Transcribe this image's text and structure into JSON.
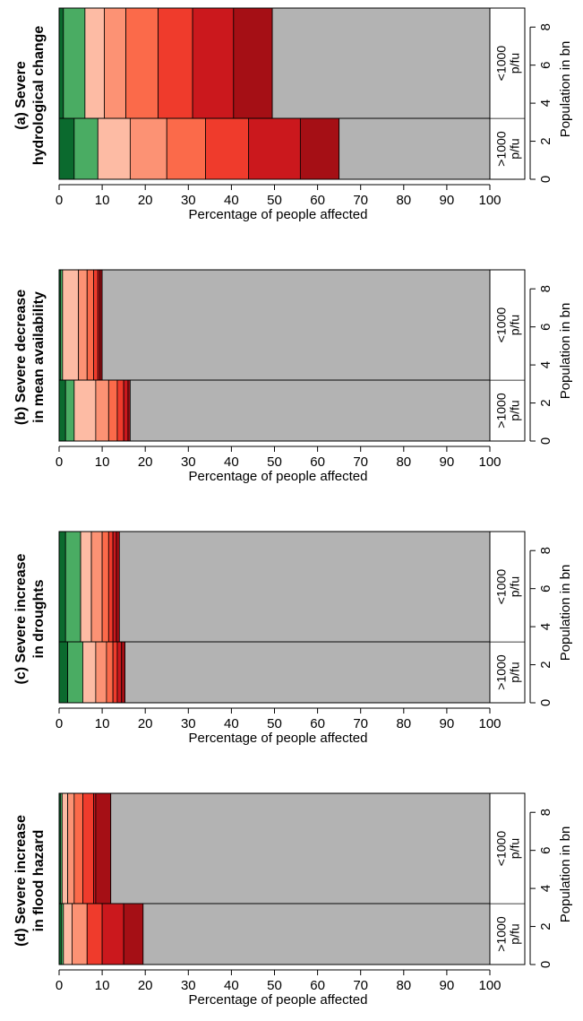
{
  "colors": {
    "unaffected": "#b3b3b3",
    "greens": [
      "#0b6a2e",
      "#2f8e4a",
      "#4aac63"
    ],
    "reds": [
      "#fdbba4",
      "#fc9274",
      "#fb6a4a",
      "#ef3b2c",
      "#cb181d",
      "#a50f15"
    ]
  },
  "chart_data": [
    {
      "type": "bar",
      "title": "(a) Severe hydrological change",
      "title_lines": [
        "(a) Severe",
        "hydrological change"
      ],
      "xlabel": "Percentage of people affected",
      "ylabel_right": "Population in bn",
      "xlim": [
        0,
        100
      ],
      "xticks": [
        0,
        10,
        20,
        30,
        40,
        50,
        60,
        70,
        80,
        90,
        100
      ],
      "ylim_right": [
        0,
        9
      ],
      "yticks_right": [
        0,
        2,
        4,
        6,
        8
      ],
      "categories": [
        {
          "label": "<1000 p/fu",
          "label_lines": [
            "<1000",
            "p/fu"
          ],
          "population_bn": [
            3.2,
            9.0
          ],
          "segments": [
            [
              0,
              1.0,
              "#0b6a2e"
            ],
            [
              1.0,
              6.0,
              "#4aac63"
            ],
            [
              6.0,
              10.5,
              "#fdbba4"
            ],
            [
              10.5,
              15.5,
              "#fc9274"
            ],
            [
              15.5,
              23.0,
              "#fb6a4a"
            ],
            [
              23.0,
              31.0,
              "#ef3b2c"
            ],
            [
              31.0,
              40.5,
              "#cb181d"
            ],
            [
              40.5,
              49.5,
              "#a50f15"
            ],
            [
              49.5,
              100,
              "#b3b3b3"
            ]
          ]
        },
        {
          "label": ">1000 p/fu",
          "label_lines": [
            ">1000",
            "p/fu"
          ],
          "population_bn": [
            0,
            3.2
          ],
          "segments": [
            [
              0,
              3.5,
              "#0b6a2e"
            ],
            [
              3.5,
              9.0,
              "#4aac63"
            ],
            [
              9.0,
              16.5,
              "#fdbba4"
            ],
            [
              16.5,
              25.0,
              "#fc9274"
            ],
            [
              25.0,
              34.0,
              "#fb6a4a"
            ],
            [
              34.0,
              44.0,
              "#ef3b2c"
            ],
            [
              44.0,
              56.0,
              "#cb181d"
            ],
            [
              56.0,
              65.0,
              "#a50f15"
            ],
            [
              65.0,
              100,
              "#b3b3b3"
            ]
          ]
        }
      ]
    },
    {
      "type": "bar",
      "title": "(b) Severe decrease in mean availability",
      "title_lines": [
        "(b) Severe decrease",
        "in mean availability"
      ],
      "xlabel": "Percentage of people affected",
      "ylabel_right": "Population in bn",
      "xlim": [
        0,
        100
      ],
      "xticks": [
        0,
        10,
        20,
        30,
        40,
        50,
        60,
        70,
        80,
        90,
        100
      ],
      "ylim_right": [
        0,
        9
      ],
      "yticks_right": [
        0,
        2,
        4,
        6,
        8
      ],
      "categories": [
        {
          "label": "<1000 p/fu",
          "label_lines": [
            "<1000",
            "p/fu"
          ],
          "population_bn": [
            3.2,
            9.0
          ],
          "segments": [
            [
              0,
              0.3,
              "#0b6a2e"
            ],
            [
              0.3,
              0.8,
              "#4aac63"
            ],
            [
              0.8,
              4.5,
              "#fdbba4"
            ],
            [
              4.5,
              6.5,
              "#fc9274"
            ],
            [
              6.5,
              8.0,
              "#fb6a4a"
            ],
            [
              8.0,
              9.0,
              "#ef3b2c"
            ],
            [
              9.0,
              9.5,
              "#cb181d"
            ],
            [
              9.5,
              10.0,
              "#a50f15"
            ],
            [
              10.0,
              100,
              "#b3b3b3"
            ]
          ]
        },
        {
          "label": ">1000 p/fu",
          "label_lines": [
            ">1000",
            "p/fu"
          ],
          "population_bn": [
            0,
            3.2
          ],
          "segments": [
            [
              0,
              1.5,
              "#0b6a2e"
            ],
            [
              1.5,
              3.5,
              "#4aac63"
            ],
            [
              3.5,
              8.5,
              "#fdbba4"
            ],
            [
              8.5,
              11.5,
              "#fc9274"
            ],
            [
              11.5,
              13.5,
              "#fb6a4a"
            ],
            [
              13.5,
              15.0,
              "#ef3b2c"
            ],
            [
              15.0,
              16.0,
              "#cb181d"
            ],
            [
              16.0,
              16.5,
              "#a50f15"
            ],
            [
              16.5,
              100,
              "#b3b3b3"
            ]
          ]
        }
      ]
    },
    {
      "type": "bar",
      "title": "(c) Severe increase in droughts",
      "title_lines": [
        "(c) Severe increase",
        "in droughts"
      ],
      "xlabel": "Percentage of people affected",
      "ylabel_right": "Population in bn",
      "xlim": [
        0,
        100
      ],
      "xticks": [
        0,
        10,
        20,
        30,
        40,
        50,
        60,
        70,
        80,
        90,
        100
      ],
      "ylim_right": [
        0,
        9
      ],
      "yticks_right": [
        0,
        2,
        4,
        6,
        8
      ],
      "categories": [
        {
          "label": "<1000 p/fu",
          "label_lines": [
            "<1000",
            "p/fu"
          ],
          "population_bn": [
            3.2,
            9.0
          ],
          "segments": [
            [
              0,
              1.5,
              "#0b6a2e"
            ],
            [
              1.5,
              5.0,
              "#4aac63"
            ],
            [
              5.0,
              7.5,
              "#fdbba4"
            ],
            [
              7.5,
              10.0,
              "#fc9274"
            ],
            [
              10.0,
              11.5,
              "#fb6a4a"
            ],
            [
              11.5,
              12.5,
              "#ef3b2c"
            ],
            [
              12.5,
              13.3,
              "#cb181d"
            ],
            [
              13.3,
              14.0,
              "#a50f15"
            ],
            [
              14.0,
              100,
              "#b3b3b3"
            ]
          ]
        },
        {
          "label": ">1000 p/fu",
          "label_lines": [
            ">1000",
            "p/fu"
          ],
          "population_bn": [
            0,
            3.2
          ],
          "segments": [
            [
              0,
              2.0,
              "#0b6a2e"
            ],
            [
              2.0,
              5.5,
              "#4aac63"
            ],
            [
              5.5,
              8.5,
              "#fdbba4"
            ],
            [
              8.5,
              11.0,
              "#fc9274"
            ],
            [
              11.0,
              12.5,
              "#fb6a4a"
            ],
            [
              12.5,
              13.5,
              "#ef3b2c"
            ],
            [
              13.5,
              14.5,
              "#cb181d"
            ],
            [
              14.5,
              15.3,
              "#a50f15"
            ],
            [
              15.3,
              100,
              "#b3b3b3"
            ]
          ]
        }
      ]
    },
    {
      "type": "bar",
      "title": "(d) Severe increase in flood hazard",
      "title_lines": [
        "(d) Severe increase",
        "in flood hazard"
      ],
      "xlabel": "Percentage of people affected",
      "ylabel_right": "Population in bn",
      "xlim": [
        0,
        100
      ],
      "xticks": [
        0,
        10,
        20,
        30,
        40,
        50,
        60,
        70,
        80,
        90,
        100
      ],
      "ylim_right": [
        0,
        9
      ],
      "yticks_right": [
        0,
        2,
        4,
        6,
        8
      ],
      "categories": [
        {
          "label": "<1000 p/fu",
          "label_lines": [
            "<1000",
            "p/fu"
          ],
          "population_bn": [
            3.2,
            9.0
          ],
          "segments": [
            [
              0,
              0.3,
              "#0b6a2e"
            ],
            [
              0.3,
              0.7,
              "#4aac63"
            ],
            [
              0.7,
              2.0,
              "#fdbba4"
            ],
            [
              2.0,
              3.5,
              "#fc9274"
            ],
            [
              3.5,
              5.5,
              "#fb6a4a"
            ],
            [
              5.5,
              8.0,
              "#ef3b2c"
            ],
            [
              8.0,
              8.5,
              "#cb181d"
            ],
            [
              8.5,
              12.0,
              "#a50f15"
            ],
            [
              12.0,
              100,
              "#b3b3b3"
            ]
          ]
        },
        {
          "label": ">1000 p/fu",
          "label_lines": [
            ">1000",
            "p/fu"
          ],
          "population_bn": [
            0,
            3.2
          ],
          "segments": [
            [
              0,
              0.5,
              "#0b6a2e"
            ],
            [
              0.5,
              1.0,
              "#4aac63"
            ],
            [
              1.0,
              3.0,
              "#fdbba4"
            ],
            [
              3.0,
              6.5,
              "#fc9274"
            ],
            [
              6.5,
              10.0,
              "#ef3b2c"
            ],
            [
              10.0,
              15.0,
              "#cb181d"
            ],
            [
              15.0,
              19.5,
              "#a50f15"
            ],
            [
              19.5,
              100,
              "#b3b3b3"
            ]
          ]
        }
      ]
    }
  ]
}
